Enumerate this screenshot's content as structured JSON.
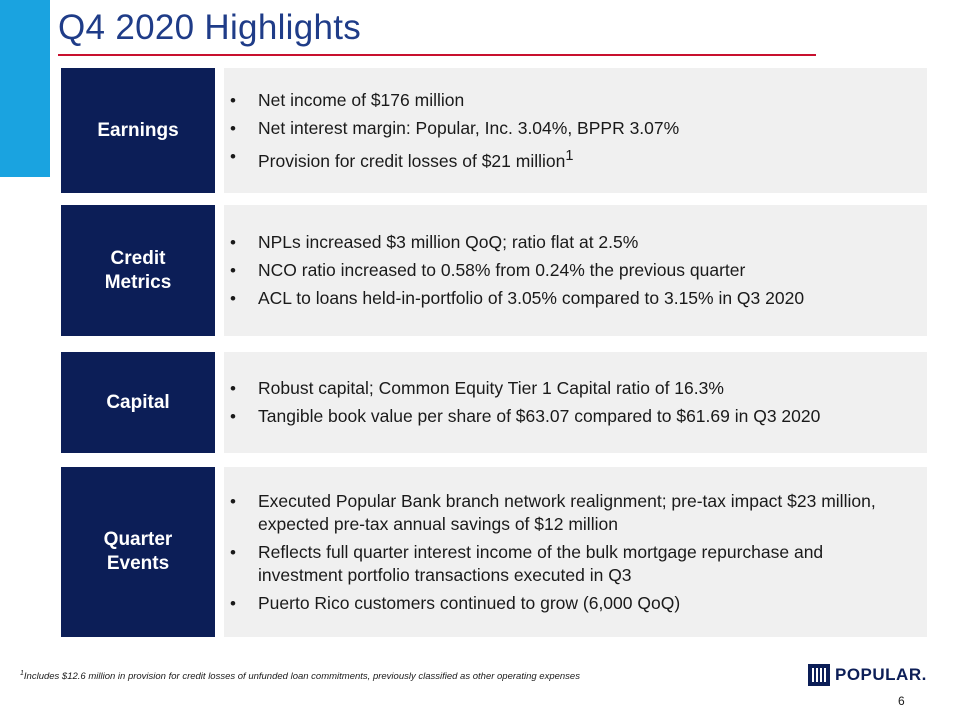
{
  "title": "Q4 2020 Highlights",
  "sections": [
    {
      "label": "Earnings",
      "bullets": [
        {
          "text": "Net income of $176 million"
        },
        {
          "text": "Net interest margin: Popular, Inc. 3.04%, BPPR 3.07%"
        },
        {
          "text": "Provision for credit losses of $21 million",
          "sup": "1"
        }
      ]
    },
    {
      "label": "Credit\nMetrics",
      "bullets": [
        {
          "text": "NPLs increased $3 million QoQ; ratio flat at 2.5%"
        },
        {
          "text": "NCO ratio increased to 0.58% from 0.24% the previous quarter"
        },
        {
          "text": "ACL to loans held-in-portfolio of 3.05% compared to 3.15% in Q3 2020"
        }
      ]
    },
    {
      "label": "Capital",
      "bullets": [
        {
          "text": "Robust capital; Common Equity Tier 1 Capital ratio of 16.3%"
        },
        {
          "text": "Tangible book value per share of $63.07 compared to $61.69 in Q3 2020"
        }
      ]
    },
    {
      "label": "Quarter\nEvents",
      "bullets": [
        {
          "text": "Executed Popular Bank branch network realignment; pre-tax impact $23 million, expected pre-tax annual savings of $12 million"
        },
        {
          "text": "Reflects full quarter interest income of the bulk mortgage repurchase and investment portfolio transactions executed in Q3"
        },
        {
          "text": "Puerto Rico customers continued to grow (6,000 QoQ)"
        }
      ]
    }
  ],
  "footnote": {
    "marker": "1",
    "text": "Includes $12.6 million in provision for  credit losses of unfunded loan commitments, previously classified as other operating expenses"
  },
  "logo_text": "POPULAR.",
  "page_number": "6",
  "colors": {
    "title": "#1f3c88",
    "title_rule": "#c8102e",
    "accent_bar": "#1aa3e0",
    "label_box": "#0c1e57",
    "content_box": "#f0f0f0"
  }
}
